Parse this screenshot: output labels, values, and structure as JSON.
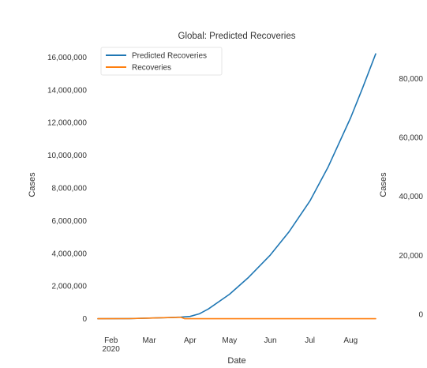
{
  "chart_data": {
    "type": "line",
    "title": "Global: Predicted Recoveries",
    "xlabel": "Date",
    "ylabel_left": "Cases",
    "ylabel_right": "Cases",
    "grid": false,
    "legend_placement": "upper-left",
    "x_ticks": [
      {
        "date": "2020-02-01",
        "label": "Feb",
        "sublabel": "2020"
      },
      {
        "date": "2020-03-01",
        "label": "Mar",
        "sublabel": ""
      },
      {
        "date": "2020-04-01",
        "label": "Apr",
        "sublabel": ""
      },
      {
        "date": "2020-05-01",
        "label": "May",
        "sublabel": ""
      },
      {
        "date": "2020-06-01",
        "label": "Jun",
        "sublabel": ""
      },
      {
        "date": "2020-07-01",
        "label": "Jul",
        "sublabel": ""
      },
      {
        "date": "2020-08-01",
        "label": "Aug",
        "sublabel": ""
      }
    ],
    "xlim": [
      "2020-01-22",
      "2020-08-20"
    ],
    "y_left": {
      "lim": [
        -500000,
        16500000
      ],
      "ticks": [
        0,
        2000000,
        4000000,
        6000000,
        8000000,
        10000000,
        12000000,
        14000000,
        16000000
      ],
      "tick_labels": [
        "0",
        "2,000,000",
        "4,000,000",
        "6,000,000",
        "8,000,000",
        "10,000,000",
        "12,000,000",
        "14,000,000",
        "16,000,000"
      ]
    },
    "y_right": {
      "lim": [
        0,
        90000
      ],
      "ticks": [
        0,
        20000,
        40000,
        60000,
        80000
      ],
      "tick_labels": [
        "0",
        "20,000",
        "40,000",
        "60,000",
        "80,000"
      ]
    },
    "series": [
      {
        "name": "Predicted Recoveries",
        "color": "#1f77b4",
        "axis": "left",
        "points": [
          [
            "2020-01-22",
            0
          ],
          [
            "2020-02-15",
            10000
          ],
          [
            "2020-03-01",
            40000
          ],
          [
            "2020-03-15",
            70000
          ],
          [
            "2020-03-25",
            100000
          ],
          [
            "2020-04-01",
            140000
          ],
          [
            "2020-04-08",
            300000
          ],
          [
            "2020-04-15",
            600000
          ],
          [
            "2020-05-01",
            1500000
          ],
          [
            "2020-05-15",
            2500000
          ],
          [
            "2020-06-01",
            3900000
          ],
          [
            "2020-06-15",
            5300000
          ],
          [
            "2020-07-01",
            7200000
          ],
          [
            "2020-07-15",
            9300000
          ],
          [
            "2020-08-01",
            12300000
          ],
          [
            "2020-08-10",
            14100000
          ],
          [
            "2020-08-20",
            16200000
          ]
        ]
      },
      {
        "name": "Recoveries",
        "color": "#ff7f0e",
        "axis": "left",
        "points": [
          [
            "2020-01-22",
            0
          ],
          [
            "2020-02-15",
            5000
          ],
          [
            "2020-03-01",
            40000
          ],
          [
            "2020-03-15",
            70000
          ],
          [
            "2020-03-25",
            90000
          ],
          [
            "2020-03-28",
            0
          ],
          [
            "2020-08-20",
            0
          ]
        ]
      }
    ]
  }
}
